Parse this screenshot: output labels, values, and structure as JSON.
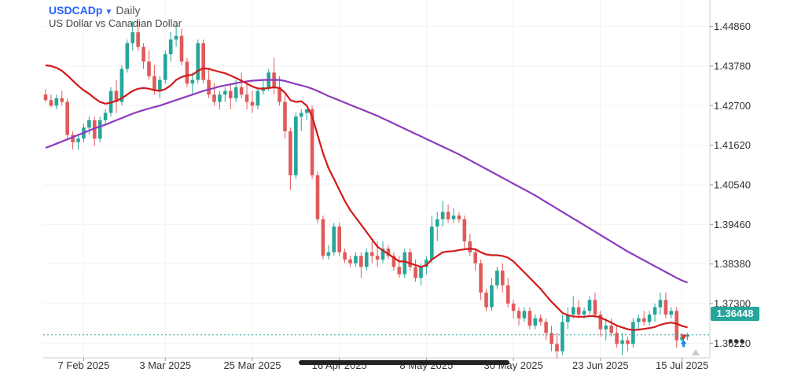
{
  "header": {
    "symbol": "USDCADp",
    "timeframe": "Daily",
    "subtitle": "US Dollar vs Canadian Dollar"
  },
  "current_price_label": "1.36448",
  "more_label": "•••",
  "colors": {
    "up": "#26a69a",
    "down": "#e05a5a",
    "ma_fast": "#d11a1a",
    "ma_slow": "#8e3bbf",
    "price_line": "#26a69a",
    "grid": "#f2f2f2"
  },
  "chart_data": {
    "type": "candlestick",
    "timeframe": "Daily",
    "y_ticks": [
      "1.44860",
      "1.43780",
      "1.42700",
      "1.41620",
      "1.40540",
      "1.39460",
      "1.38380",
      "1.37300",
      "1.36220"
    ],
    "x_ticks": [
      "7 Feb 2025",
      "3 Mar 2025",
      "25 Mar 2025",
      "16 Apr 2025",
      "8 May 2025",
      "30 May 2025",
      "23 Jun 2025",
      "15 Jul 2025"
    ],
    "ylim": [
      1.3582,
      1.4558
    ],
    "current_price": 1.36448,
    "candles": [
      [
        1.43,
        1.4315,
        1.428,
        1.4285
      ],
      [
        1.4285,
        1.43,
        1.4265,
        1.427
      ],
      [
        1.427,
        1.43,
        1.426,
        1.429
      ],
      [
        1.429,
        1.431,
        1.427,
        1.428
      ],
      [
        1.428,
        1.429,
        1.418,
        1.419
      ],
      [
        1.419,
        1.42,
        1.415,
        1.417
      ],
      [
        1.417,
        1.419,
        1.415,
        1.418
      ],
      [
        1.418,
        1.422,
        1.417,
        1.421
      ],
      [
        1.421,
        1.424,
        1.419,
        1.423
      ],
      [
        1.423,
        1.424,
        1.416,
        1.418
      ],
      [
        1.418,
        1.424,
        1.417,
        1.423
      ],
      [
        1.423,
        1.426,
        1.422,
        1.425
      ],
      [
        1.425,
        1.432,
        1.424,
        1.431
      ],
      [
        1.431,
        1.434,
        1.425,
        1.428
      ],
      [
        1.428,
        1.438,
        1.427,
        1.437
      ],
      [
        1.437,
        1.445,
        1.436,
        1.444
      ],
      [
        1.444,
        1.45,
        1.442,
        1.447
      ],
      [
        1.447,
        1.45,
        1.442,
        1.443
      ],
      [
        1.443,
        1.444,
        1.437,
        1.439
      ],
      [
        1.439,
        1.442,
        1.434,
        1.435
      ],
      [
        1.435,
        1.438,
        1.43,
        1.431
      ],
      [
        1.431,
        1.435,
        1.429,
        1.434
      ],
      [
        1.434,
        1.442,
        1.433,
        1.441
      ],
      [
        1.441,
        1.447,
        1.439,
        1.445
      ],
      [
        1.445,
        1.449,
        1.443,
        1.446
      ],
      [
        1.446,
        1.448,
        1.438,
        1.439
      ],
      [
        1.439,
        1.44,
        1.432,
        1.433
      ],
      [
        1.433,
        1.436,
        1.43,
        1.434
      ],
      [
        1.434,
        1.445,
        1.433,
        1.444
      ],
      [
        1.444,
        1.445,
        1.433,
        1.434
      ],
      [
        1.434,
        1.437,
        1.429,
        1.43
      ],
      [
        1.43,
        1.433,
        1.427,
        1.428
      ],
      [
        1.428,
        1.431,
        1.426,
        1.43
      ],
      [
        1.43,
        1.432,
        1.428,
        1.431
      ],
      [
        1.431,
        1.433,
        1.426,
        1.429
      ],
      [
        1.429,
        1.434,
        1.428,
        1.432
      ],
      [
        1.432,
        1.436,
        1.429,
        1.43
      ],
      [
        1.43,
        1.433,
        1.426,
        1.428
      ],
      [
        1.428,
        1.431,
        1.425,
        1.427
      ],
      [
        1.427,
        1.432,
        1.426,
        1.431
      ],
      [
        1.431,
        1.434,
        1.43,
        1.432
      ],
      [
        1.432,
        1.437,
        1.431,
        1.436
      ],
      [
        1.436,
        1.44,
        1.43,
        1.432
      ],
      [
        1.432,
        1.435,
        1.427,
        1.428
      ],
      [
        1.428,
        1.43,
        1.418,
        1.42
      ],
      [
        1.42,
        1.421,
        1.404,
        1.408
      ],
      [
        1.408,
        1.425,
        1.407,
        1.424
      ],
      [
        1.424,
        1.426,
        1.42,
        1.425
      ],
      [
        1.425,
        1.426,
        1.423,
        1.426
      ],
      [
        1.426,
        1.427,
        1.407,
        1.408
      ],
      [
        1.408,
        1.409,
        1.395,
        1.396
      ],
      [
        1.396,
        1.397,
        1.385,
        1.386
      ],
      [
        1.386,
        1.389,
        1.385,
        1.387
      ],
      [
        1.387,
        1.395,
        1.386,
        1.394
      ],
      [
        1.394,
        1.395,
        1.386,
        1.387
      ],
      [
        1.387,
        1.388,
        1.384,
        1.385
      ],
      [
        1.385,
        1.386,
        1.383,
        1.384
      ],
      [
        1.384,
        1.387,
        1.383,
        1.386
      ],
      [
        1.386,
        1.387,
        1.38,
        1.383
      ],
      [
        1.383,
        1.388,
        1.382,
        1.387
      ],
      [
        1.387,
        1.39,
        1.384,
        1.386
      ],
      [
        1.386,
        1.39,
        1.383,
        1.385
      ],
      [
        1.385,
        1.39,
        1.384,
        1.388
      ],
      [
        1.388,
        1.389,
        1.385,
        1.386
      ],
      [
        1.386,
        1.387,
        1.382,
        1.383
      ],
      [
        1.383,
        1.386,
        1.38,
        1.381
      ],
      [
        1.381,
        1.388,
        1.38,
        1.387
      ],
      [
        1.387,
        1.388,
        1.382,
        1.383
      ],
      [
        1.383,
        1.385,
        1.379,
        1.38
      ],
      [
        1.38,
        1.384,
        1.378,
        1.383
      ],
      [
        1.383,
        1.386,
        1.381,
        1.385
      ],
      [
        1.385,
        1.397,
        1.384,
        1.394
      ],
      [
        1.394,
        1.398,
        1.39,
        1.396
      ],
      [
        1.396,
        1.401,
        1.394,
        1.398
      ],
      [
        1.398,
        1.4,
        1.395,
        1.396
      ],
      [
        1.396,
        1.399,
        1.395,
        1.397
      ],
      [
        1.397,
        1.398,
        1.395,
        1.396
      ],
      [
        1.396,
        1.397,
        1.388,
        1.39
      ],
      [
        1.39,
        1.392,
        1.386,
        1.387
      ],
      [
        1.387,
        1.388,
        1.382,
        1.384
      ],
      [
        1.384,
        1.385,
        1.374,
        1.376
      ],
      [
        1.376,
        1.377,
        1.371,
        1.372
      ],
      [
        1.372,
        1.38,
        1.371,
        1.378
      ],
      [
        1.378,
        1.383,
        1.377,
        1.382
      ],
      [
        1.382,
        1.384,
        1.376,
        1.378
      ],
      [
        1.378,
        1.38,
        1.372,
        1.373
      ],
      [
        1.373,
        1.374,
        1.369,
        1.371
      ],
      [
        1.371,
        1.372,
        1.367,
        1.369
      ],
      [
        1.369,
        1.372,
        1.368,
        1.371
      ],
      [
        1.371,
        1.372,
        1.366,
        1.367
      ],
      [
        1.367,
        1.37,
        1.366,
        1.369
      ],
      [
        1.369,
        1.37,
        1.367,
        1.368
      ],
      [
        1.368,
        1.369,
        1.363,
        1.365
      ],
      [
        1.365,
        1.367,
        1.36,
        1.362
      ],
      [
        1.362,
        1.365,
        1.358,
        1.36
      ],
      [
        1.36,
        1.37,
        1.359,
        1.368
      ],
      [
        1.368,
        1.372,
        1.366,
        1.37
      ],
      [
        1.37,
        1.375,
        1.369,
        1.372
      ],
      [
        1.372,
        1.374,
        1.369,
        1.37
      ],
      [
        1.37,
        1.372,
        1.369,
        1.371
      ],
      [
        1.371,
        1.375,
        1.37,
        1.374
      ],
      [
        1.374,
        1.376,
        1.369,
        1.37
      ],
      [
        1.37,
        1.371,
        1.364,
        1.366
      ],
      [
        1.366,
        1.369,
        1.363,
        1.367
      ],
      [
        1.367,
        1.369,
        1.364,
        1.365
      ],
      [
        1.365,
        1.367,
        1.361,
        1.362
      ],
      [
        1.362,
        1.365,
        1.359,
        1.363
      ],
      [
        1.363,
        1.364,
        1.36,
        1.362
      ],
      [
        1.362,
        1.369,
        1.361,
        1.368
      ],
      [
        1.368,
        1.37,
        1.366,
        1.369
      ],
      [
        1.369,
        1.371,
        1.367,
        1.368
      ],
      [
        1.368,
        1.371,
        1.367,
        1.37
      ],
      [
        1.37,
        1.373,
        1.368,
        1.372
      ],
      [
        1.372,
        1.376,
        1.37,
        1.374
      ],
      [
        1.374,
        1.376,
        1.369,
        1.37
      ],
      [
        1.37,
        1.372,
        1.369,
        1.371
      ],
      [
        1.371,
        1.372,
        1.361,
        1.363
      ],
      [
        1.363,
        1.365,
        1.362,
        1.364
      ],
      [
        1.364,
        1.365,
        1.363,
        1.3645
      ]
    ],
    "ma_fast": [
      1.438,
      1.4378,
      1.4373,
      1.4365,
      1.4352,
      1.4338,
      1.4324,
      1.4312,
      1.4302,
      1.429,
      1.428,
      1.4275,
      1.4278,
      1.4283,
      1.429,
      1.43,
      1.431,
      1.4316,
      1.4318,
      1.4316,
      1.4312,
      1.431,
      1.4315,
      1.4325,
      1.434,
      1.4348,
      1.4352,
      1.4354,
      1.4365,
      1.4372,
      1.437,
      1.4366,
      1.4362,
      1.4358,
      1.4352,
      1.4345,
      1.4338,
      1.433,
      1.4322,
      1.4317,
      1.4316,
      1.4318,
      1.432,
      1.4318,
      1.4305,
      1.4285,
      1.428,
      1.4282,
      1.427,
      1.424,
      1.419,
      1.414,
      1.41,
      1.407,
      1.404,
      1.401,
      1.3985,
      1.3965,
      1.3945,
      1.3925,
      1.3905,
      1.3885,
      1.3875,
      1.3865,
      1.3855,
      1.3845,
      1.3845,
      1.384,
      1.3835,
      1.383,
      1.3835,
      1.385,
      1.386,
      1.387,
      1.3872,
      1.3873,
      1.3876,
      1.3878,
      1.388,
      1.3878,
      1.387,
      1.3864,
      1.3862,
      1.3862,
      1.386,
      1.3855,
      1.3845,
      1.383,
      1.3815,
      1.38,
      1.3785,
      1.377,
      1.3752,
      1.3735,
      1.372,
      1.3705,
      1.3698,
      1.3695,
      1.3694,
      1.3694,
      1.3696,
      1.3696,
      1.3692,
      1.3685,
      1.3678,
      1.367,
      1.3665,
      1.366,
      1.3658,
      1.3659,
      1.3661,
      1.3663,
      1.3666,
      1.3672,
      1.3676,
      1.3678,
      1.3675,
      1.3669,
      1.3665
    ],
    "ma_slow": [
      1.4155,
      1.416,
      1.4166,
      1.4172,
      1.4178,
      1.4184,
      1.419,
      1.4196,
      1.4202,
      1.4208,
      1.4213,
      1.4218,
      1.4224,
      1.423,
      1.4236,
      1.4242,
      1.4248,
      1.4253,
      1.4258,
      1.4262,
      1.4266,
      1.427,
      1.4275,
      1.428,
      1.4285,
      1.429,
      1.4295,
      1.43,
      1.4305,
      1.431,
      1.4314,
      1.4318,
      1.4322,
      1.4325,
      1.4328,
      1.4331,
      1.4334,
      1.4336,
      1.4338,
      1.4339,
      1.434,
      1.434,
      1.434,
      1.434,
      1.4337,
      1.4333,
      1.4329,
      1.4325,
      1.4321,
      1.4316,
      1.431,
      1.4303,
      1.4296,
      1.429,
      1.4284,
      1.4278,
      1.4272,
      1.4266,
      1.426,
      1.4254,
      1.4248,
      1.4242,
      1.4235,
      1.4228,
      1.4221,
      1.4214,
      1.4207,
      1.42,
      1.4193,
      1.4186,
      1.4179,
      1.4172,
      1.4165,
      1.4158,
      1.4151,
      1.4144,
      1.4137,
      1.4129,
      1.4121,
      1.4113,
      1.4105,
      1.4097,
      1.4089,
      1.4081,
      1.4073,
      1.4065,
      1.4057,
      1.4049,
      1.4041,
      1.4033,
      1.4025,
      1.4016,
      1.4007,
      1.3998,
      1.3989,
      1.398,
      1.3971,
      1.3962,
      1.3953,
      1.3944,
      1.3935,
      1.3926,
      1.3917,
      1.3908,
      1.3899,
      1.389,
      1.3881,
      1.3872,
      1.3864,
      1.3856,
      1.3848,
      1.384,
      1.3832,
      1.3824,
      1.3816,
      1.3808,
      1.38,
      1.3793,
      1.3787
    ],
    "markers": [
      {
        "index": 117,
        "direction": "sell",
        "price": 1.3637
      },
      {
        "index": 117,
        "direction": "buy",
        "price": 1.3622
      }
    ]
  }
}
